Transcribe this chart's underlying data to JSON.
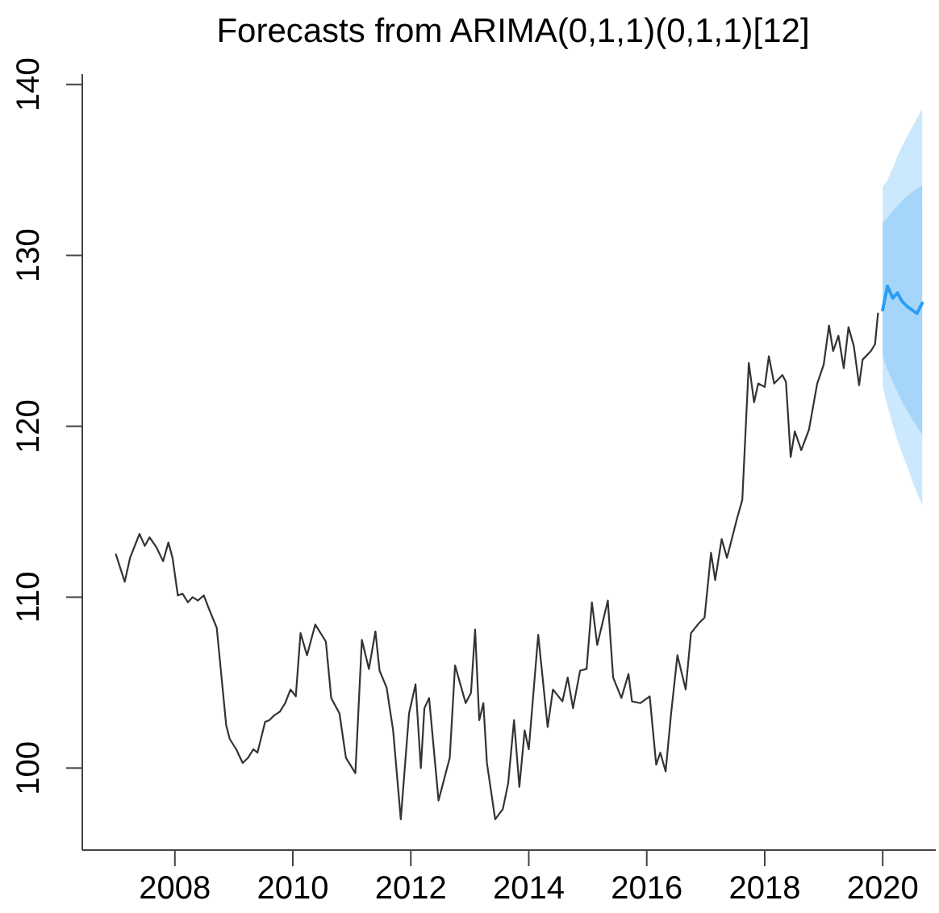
{
  "chart_data": {
    "type": "line",
    "title": "Forecasts from ARIMA(0,1,1)(0,1,1)[12]",
    "xlim": [
      2006.43,
      2020.9
    ],
    "xticks": [
      2008,
      2010,
      2012,
      2014,
      2016,
      2018,
      2020
    ],
    "ylim": [
      95.2,
      140.6
    ],
    "yticks": [
      100,
      110,
      120,
      130,
      140
    ],
    "series": [
      {
        "color": "#333333",
        "x": [
          2007.0,
          2007.15,
          2007.24,
          2007.4,
          2007.49,
          2007.57,
          2007.69,
          2007.8,
          2007.89,
          2007.96,
          2008.05,
          2008.13,
          2008.22,
          2008.3,
          2008.39,
          2008.49,
          2008.58,
          2008.71,
          2008.78,
          2008.87,
          2008.93,
          2009.04,
          2009.15,
          2009.24,
          2009.33,
          2009.4,
          2009.53,
          2009.6,
          2009.69,
          2009.78,
          2009.87,
          2009.96,
          2010.05,
          2010.13,
          2010.24,
          2010.38,
          2010.56,
          2010.65,
          2010.79,
          2010.9,
          2011.06,
          2011.17,
          2011.29,
          2011.4,
          2011.47,
          2011.59,
          2011.7,
          2011.83,
          2011.97,
          2012.08,
          2012.17,
          2012.23,
          2012.31,
          2012.47,
          2012.66,
          2012.75,
          2012.93,
          2013.02,
          2013.09,
          2013.16,
          2013.23,
          2013.29,
          2013.43,
          2013.56,
          2013.65,
          2013.75,
          2013.84,
          2013.93,
          2014.0,
          2014.16,
          2014.32,
          2014.41,
          2014.57,
          2014.66,
          2014.75,
          2014.87,
          2014.98,
          2015.07,
          2015.16,
          2015.34,
          2015.43,
          2015.57,
          2015.69,
          2015.75,
          2015.89,
          2016.05,
          2016.16,
          2016.23,
          2016.32,
          2016.41,
          2016.52,
          2016.66,
          2016.75,
          2016.89,
          2016.98,
          2017.09,
          2017.16,
          2017.27,
          2017.36,
          2017.53,
          2017.62,
          2017.73,
          2017.82,
          2017.89,
          2018.0,
          2018.07,
          2018.16,
          2018.3,
          2018.36,
          2018.44,
          2018.51,
          2018.62,
          2018.75,
          2018.89,
          2019.0,
          2019.09,
          2019.16,
          2019.25,
          2019.34,
          2019.42,
          2019.51,
          2019.6,
          2019.66,
          2019.8,
          2019.87,
          2019.92
        ],
        "values": [
          112.5,
          110.9,
          112.3,
          113.7,
          113.0,
          113.5,
          112.9,
          112.1,
          113.2,
          112.3,
          110.1,
          110.2,
          109.7,
          110.0,
          109.8,
          110.1,
          109.3,
          108.2,
          105.7,
          102.5,
          101.7,
          101.1,
          100.3,
          100.6,
          101.1,
          100.9,
          102.7,
          102.8,
          103.1,
          103.3,
          103.8,
          104.6,
          104.2,
          107.9,
          106.6,
          108.4,
          107.4,
          104.1,
          103.2,
          100.6,
          99.7,
          107.5,
          105.8,
          108.0,
          105.7,
          104.7,
          102.2,
          97.0,
          103.2,
          104.9,
          100.0,
          103.5,
          104.1,
          98.1,
          100.6,
          106.0,
          103.8,
          104.4,
          108.1,
          102.8,
          103.8,
          100.3,
          97.0,
          97.6,
          99.1,
          102.8,
          98.9,
          102.2,
          101.1,
          107.8,
          102.4,
          104.6,
          103.9,
          105.3,
          103.5,
          105.7,
          105.8,
          109.7,
          107.2,
          109.8,
          105.3,
          104.1,
          105.5,
          103.9,
          103.8,
          104.2,
          100.2,
          100.9,
          99.8,
          103.1,
          106.6,
          104.6,
          107.9,
          108.5,
          108.8,
          112.6,
          111.0,
          113.4,
          112.3,
          114.6,
          115.7,
          123.7,
          121.4,
          122.5,
          122.3,
          124.1,
          122.5,
          123.0,
          122.6,
          118.2,
          119.7,
          118.6,
          119.8,
          122.5,
          123.6,
          125.9,
          124.4,
          125.3,
          123.4,
          125.8,
          124.7,
          122.4,
          123.9,
          124.4,
          124.8,
          126.6
        ]
      },
      {
        "color": "#2a9df4",
        "x": [
          2020.0,
          2020.08,
          2020.17,
          2020.25,
          2020.33,
          2020.42,
          2020.5,
          2020.58,
          2020.67
        ],
        "values": [
          126.8,
          128.2,
          127.5,
          127.8,
          127.3,
          127.0,
          126.8,
          126.6,
          127.2
        ],
        "lower": [
          122.3,
          121.2,
          120.1,
          119.2,
          118.4,
          117.6,
          116.8,
          116.1,
          115.4
        ],
        "upper": [
          134.0,
          134.4,
          135.1,
          135.8,
          136.4,
          137.0,
          137.5,
          138.0,
          138.6
        ]
      },
      {
        "color": "#2a9ef4",
        "x": [
          2020.0,
          2020.08,
          2020.17,
          2020.25,
          2020.33,
          2020.42,
          2020.5,
          2020.58,
          2020.67
        ],
        "values": [
          126.8,
          128.2,
          127.5,
          127.8,
          127.3,
          127.0,
          126.8,
          126.6,
          127.2
        ],
        "lower": [
          124.1,
          123.3,
          122.6,
          122.0,
          121.4,
          120.9,
          120.4,
          120.0,
          119.5
        ],
        "upper": [
          131.9,
          132.2,
          132.6,
          132.9,
          133.2,
          133.5,
          133.7,
          133.9,
          134.1
        ]
      }
    ]
  }
}
